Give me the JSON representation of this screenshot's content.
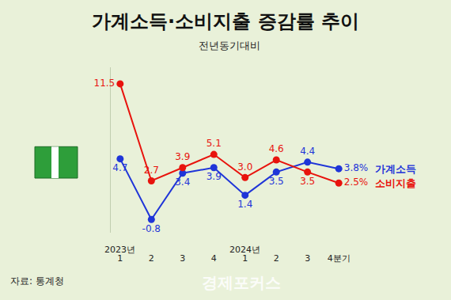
{
  "chart_data": {
    "type": "line",
    "title": "가계소득·소비지출 증감률 추이",
    "subtitle": "전년동기대비",
    "source": "자료: 통계청",
    "watermark": "경제포커스",
    "categories": [
      "1",
      "2",
      "3",
      "4",
      "1",
      "2",
      "3",
      "4분기"
    ],
    "year_labels": [
      {
        "category_index": 0,
        "label": "2023년"
      },
      {
        "category_index": 4,
        "label": "2024년"
      }
    ],
    "series": [
      {
        "name": "가계소득",
        "color": "#1f35d8",
        "marker": "circle",
        "line_style": "solid",
        "values": [
          4.7,
          -0.8,
          3.4,
          3.9,
          1.4,
          3.5,
          4.4,
          3.8
        ],
        "value_labels": [
          "4.7",
          "-0.8",
          "3.4",
          "3.9",
          "1.4",
          "3.5",
          "4.4",
          "3.8%"
        ]
      },
      {
        "name": "소비지출",
        "color": "#e8130d",
        "marker": "circle",
        "line_style": "solid",
        "values": [
          11.5,
          2.7,
          3.9,
          5.1,
          3.0,
          4.6,
          3.5,
          2.5
        ],
        "value_labels": [
          "11.5",
          "2.7",
          "3.9",
          "5.1",
          "3.0",
          "4.6",
          "3.5",
          "2.5%"
        ]
      }
    ],
    "ylim": [
      -2,
      13
    ],
    "grid": false,
    "data_labels": true,
    "tick_labels": "x"
  }
}
